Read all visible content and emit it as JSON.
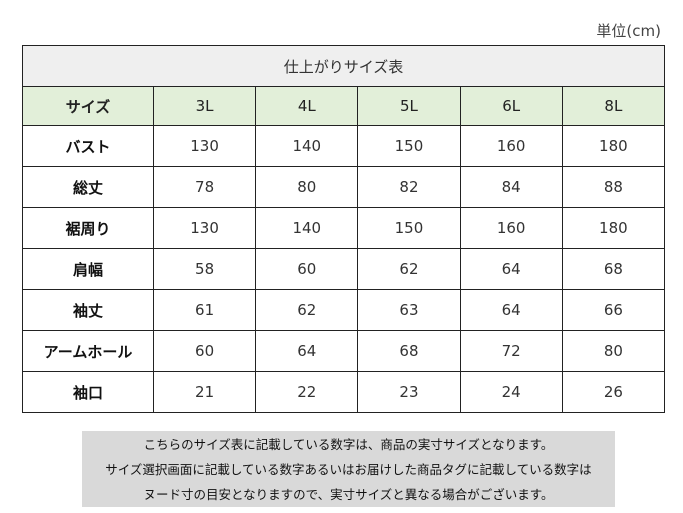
{
  "unit_label": "単位(cm)",
  "table": {
    "title": "仕上がりサイズ表",
    "header_label": "サイズ",
    "sizes": [
      "3L",
      "4L",
      "5L",
      "6L",
      "8L"
    ],
    "rows": [
      {
        "label": "バスト",
        "values": [
          "130",
          "140",
          "150",
          "160",
          "180"
        ]
      },
      {
        "label": "総丈",
        "values": [
          "78",
          "80",
          "82",
          "84",
          "88"
        ]
      },
      {
        "label": "裾周り",
        "values": [
          "130",
          "140",
          "150",
          "160",
          "180"
        ]
      },
      {
        "label": "肩幅",
        "values": [
          "58",
          "60",
          "62",
          "64",
          "68"
        ]
      },
      {
        "label": "袖丈",
        "values": [
          "61",
          "62",
          "63",
          "64",
          "66"
        ]
      },
      {
        "label": "アームホール",
        "values": [
          "60",
          "64",
          "68",
          "72",
          "80"
        ]
      },
      {
        "label": "袖口",
        "values": [
          "21",
          "22",
          "23",
          "24",
          "26"
        ]
      }
    ]
  },
  "note": {
    "lines": [
      "こちらのサイズ表に記載している数字は、商品の実寸サイズとなります。",
      "サイズ選択画面に記載している数字あるいはお届けした商品タグに記載している数字は",
      "ヌード寸の目安となりますので、実寸サイズと異なる場合がございます。"
    ]
  }
}
